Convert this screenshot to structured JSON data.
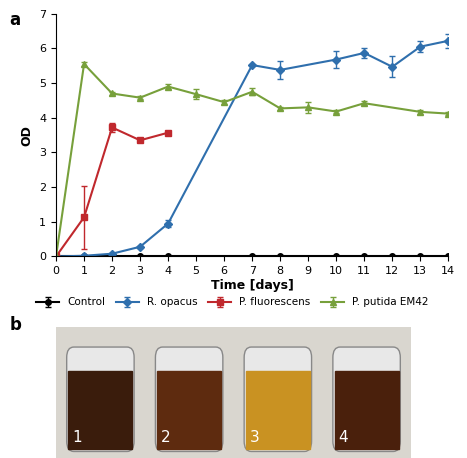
{
  "panel_labels": [
    "a",
    "b"
  ],
  "chart_data": {
    "type": "line",
    "x_label": "Time [days]",
    "y_label": "OD",
    "xlim": [
      0,
      14
    ],
    "xticks": [
      0,
      1,
      2,
      3,
      4,
      5,
      6,
      7,
      8,
      9,
      10,
      11,
      12,
      13,
      14
    ],
    "ylim": [
      0,
      7
    ],
    "yticks": [
      0,
      1,
      2,
      3,
      4,
      5,
      6,
      7
    ],
    "legend": "bottom",
    "series": [
      {
        "name": "Control",
        "color": "#000000",
        "marker": "circle",
        "x": [
          0,
          1,
          2,
          3,
          4,
          7,
          8,
          10,
          11,
          12,
          13,
          14
        ],
        "values": [
          0,
          0,
          0,
          0,
          0,
          0,
          0,
          0,
          0,
          0,
          0,
          0
        ],
        "error": [
          0,
          0,
          0,
          0,
          0,
          0,
          0,
          0,
          0,
          0,
          0,
          0
        ]
      },
      {
        "name": "R. opacus",
        "color": "#2f6fad",
        "marker": "diamond",
        "x": [
          0,
          1,
          2,
          3,
          4,
          7,
          8,
          10,
          11,
          12,
          13,
          14
        ],
        "values": [
          0,
          0.02,
          0.08,
          0.28,
          0.95,
          5.52,
          5.38,
          5.68,
          5.87,
          5.47,
          6.05,
          6.22
        ],
        "error": [
          0,
          0,
          0.02,
          0.03,
          0.1,
          0,
          0.25,
          0.25,
          0.15,
          0.3,
          0.15,
          0.2
        ]
      },
      {
        "name": "P. fluorescens",
        "color": "#c0282d",
        "marker": "square",
        "x": [
          0,
          1,
          2,
          3,
          4
        ],
        "values": [
          0,
          1.13,
          3.72,
          3.35,
          3.57
        ],
        "error": [
          0,
          0.9,
          0.12,
          0,
          0
        ]
      },
      {
        "name": "P. putida EM42",
        "color": "#77a03b",
        "marker": "triangle",
        "x": [
          0,
          1,
          2,
          3,
          4,
          5,
          6,
          7,
          8,
          9,
          10,
          11,
          13,
          14
        ],
        "values": [
          0,
          5.55,
          4.7,
          4.58,
          4.9,
          4.68,
          4.45,
          4.75,
          4.27,
          4.3,
          4.18,
          4.42,
          4.17,
          4.12
        ],
        "error": [
          0,
          0.05,
          0.05,
          0.05,
          0.08,
          0.15,
          0.05,
          0.1,
          0.05,
          0.15,
          0.05,
          0.05,
          0.05,
          0.05
        ]
      }
    ]
  },
  "photo": {
    "labels": [
      "1",
      "2",
      "3",
      "4"
    ]
  }
}
